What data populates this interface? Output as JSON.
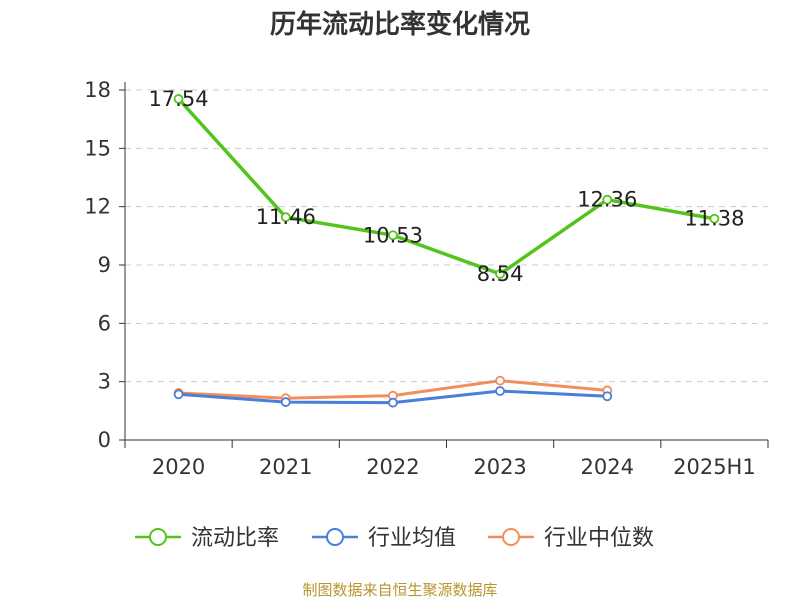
{
  "chart_data": {
    "type": "line",
    "title": "历年流动比率变化情况",
    "categories": [
      "2020",
      "2021",
      "2022",
      "2023",
      "2024",
      "2025H1"
    ],
    "yticks": [
      0,
      3,
      6,
      9,
      12,
      15,
      18
    ],
    "ylim": [
      0,
      18
    ],
    "grid": true,
    "legend_position": "bottom",
    "series": [
      {
        "name": "流动比率",
        "color": "#52c41a",
        "values": [
          17.54,
          11.46,
          10.53,
          8.54,
          12.36,
          11.38
        ],
        "labels": [
          "17.54",
          "11.46",
          "10.53",
          "8.54",
          "12.36",
          "11.38"
        ]
      },
      {
        "name": "行业均值",
        "color": "#4a7fd8",
        "values": [
          2.35,
          1.95,
          1.92,
          2.52,
          2.25,
          null
        ]
      },
      {
        "name": "行业中位数",
        "color": "#f28e5b",
        "values": [
          2.42,
          2.15,
          2.28,
          3.05,
          2.55,
          null
        ]
      }
    ],
    "source": "制图数据来自恒生聚源数据库"
  }
}
